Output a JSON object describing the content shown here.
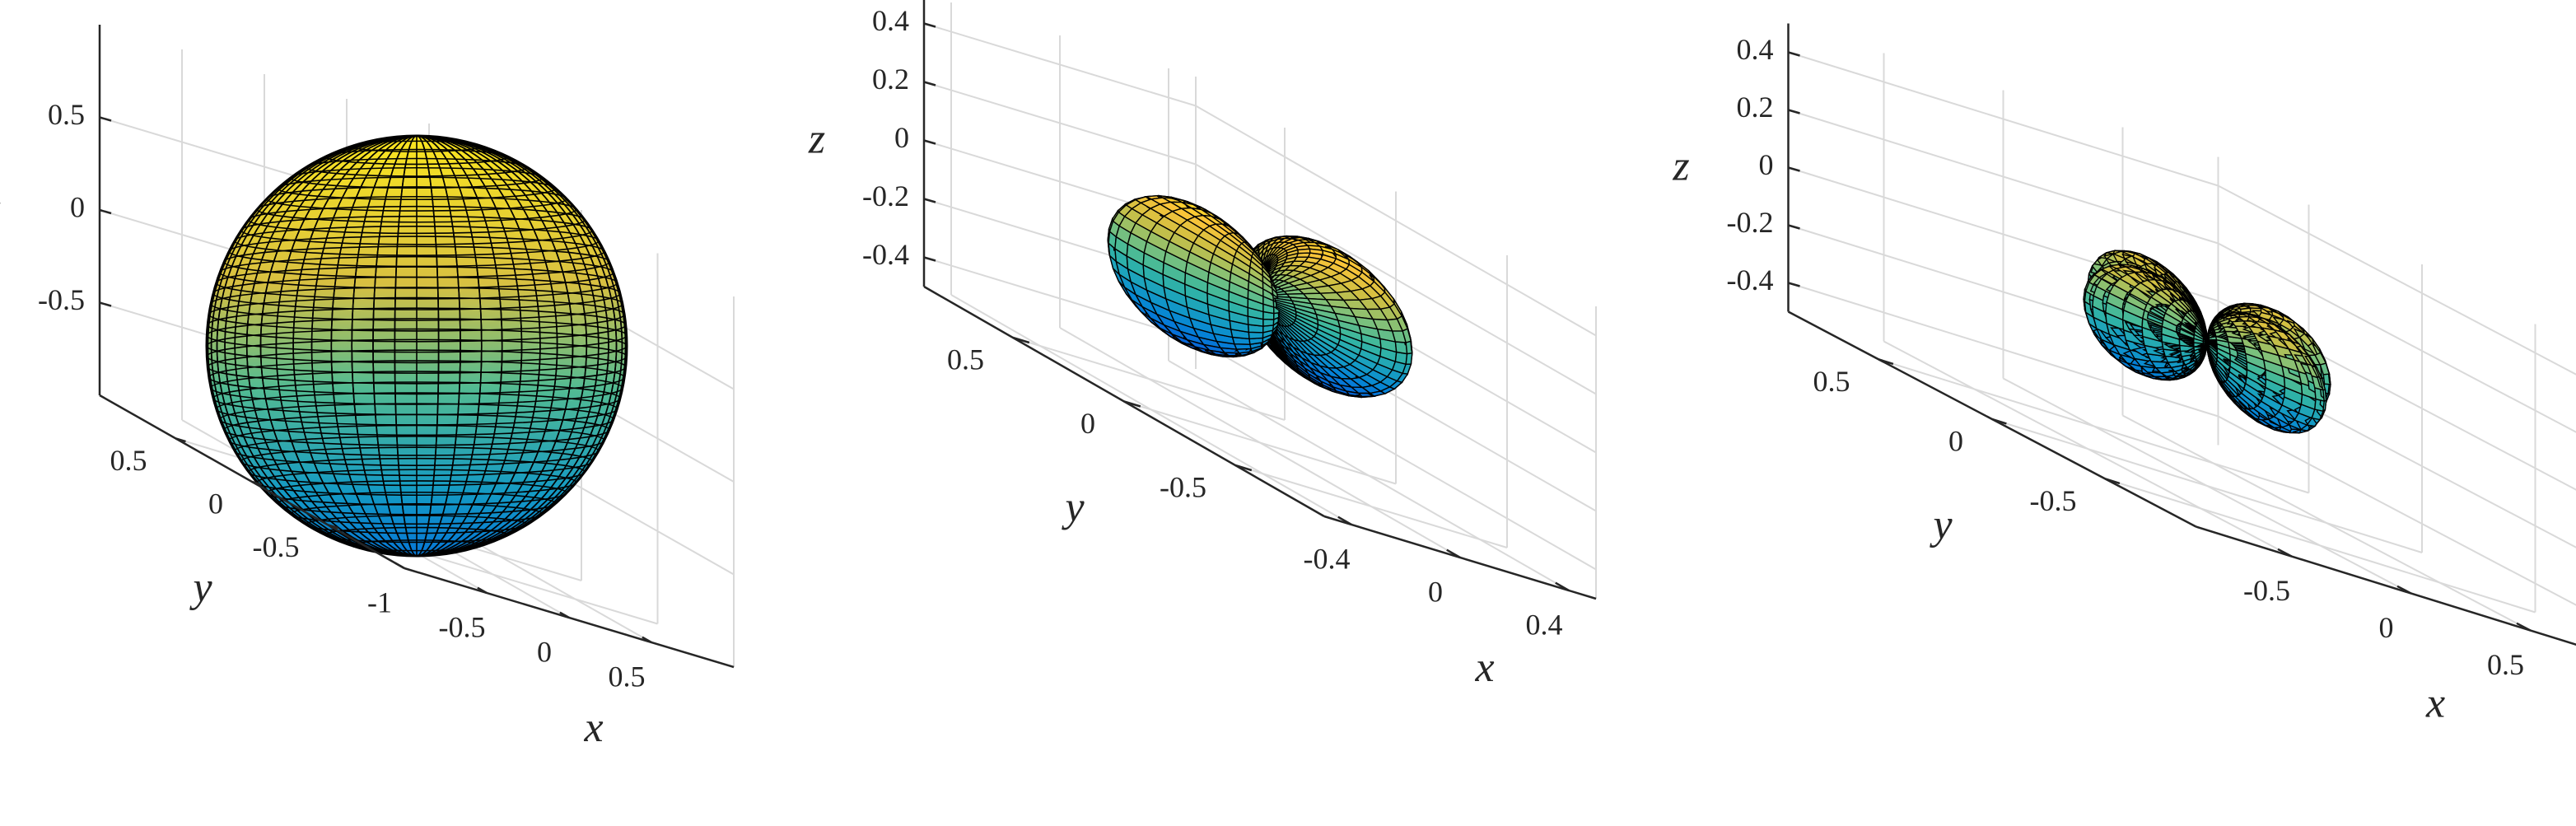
{
  "colors": {
    "axis": "#262626",
    "grid": "#d9d9d9",
    "mesh_edge": "#000000",
    "colormap": "parula"
  },
  "chart_data": [
    {
      "type": "surface",
      "surface": "spherical harmonic |Y_0^0| (sphere)",
      "grid": true,
      "xlabel": "x",
      "ylabel": "y",
      "zlabel": "z",
      "xlim": [
        -1,
        1
      ],
      "ylim": [
        -1,
        1
      ],
      "zlim": [
        -1,
        1
      ],
      "xticks": [
        {
          "v": -1,
          "label": "-1"
        },
        {
          "v": -0.5,
          "label": "-0.5"
        },
        {
          "v": 0,
          "label": "0"
        },
        {
          "v": 0.5,
          "label": "0.5"
        }
      ],
      "yticks": [
        {
          "v": -0.5,
          "label": "-0.5"
        },
        {
          "v": 0,
          "label": "0"
        },
        {
          "v": 0.5,
          "label": "0.5"
        }
      ],
      "zticks": [
        {
          "v": -0.5,
          "label": "-0.5"
        },
        {
          "v": 0,
          "label": "0"
        },
        {
          "v": 0.5,
          "label": "0.5"
        }
      ]
    },
    {
      "type": "surface",
      "surface": "spherical harmonic |Y_1^1| (two lobes)",
      "grid": true,
      "xlabel": "x",
      "ylabel": "y",
      "zlabel": "z",
      "xlim": [
        -0.5,
        0.5
      ],
      "ylim": [
        -0.9,
        0.9
      ],
      "zlim": [
        -0.5,
        0.5
      ],
      "xticks": [
        {
          "v": -0.4,
          "label": "-0.4"
        },
        {
          "v": 0,
          "label": "0"
        },
        {
          "v": 0.4,
          "label": "0.4"
        }
      ],
      "yticks": [
        {
          "v": -0.5,
          "label": "-0.5"
        },
        {
          "v": 0,
          "label": "0"
        },
        {
          "v": 0.5,
          "label": "0.5"
        }
      ],
      "zticks": [
        {
          "v": -0.4,
          "label": "-0.4"
        },
        {
          "v": -0.2,
          "label": "-0.2"
        },
        {
          "v": 0,
          "label": "0"
        },
        {
          "v": 0.2,
          "label": "0.2"
        },
        {
          "v": 0.4,
          "label": "0.4"
        }
      ]
    },
    {
      "type": "surface",
      "surface": "spherical harmonic |Y_2^2| (four lobes)",
      "grid": true,
      "xlabel": "x",
      "ylabel": "y",
      "zlabel": "z",
      "xlim": [
        -0.9,
        0.9
      ],
      "ylim": [
        -0.9,
        0.9
      ],
      "zlim": [
        -0.5,
        0.5
      ],
      "xticks": [
        {
          "v": -0.5,
          "label": "-0.5"
        },
        {
          "v": 0,
          "label": "0"
        },
        {
          "v": 0.5,
          "label": "0.5"
        }
      ],
      "yticks": [
        {
          "v": -0.5,
          "label": "-0.5"
        },
        {
          "v": 0,
          "label": "0"
        },
        {
          "v": 0.5,
          "label": "0.5"
        }
      ],
      "zticks": [
        {
          "v": -0.4,
          "label": "-0.4"
        },
        {
          "v": -0.2,
          "label": "-0.2"
        },
        {
          "v": 0,
          "label": "0"
        },
        {
          "v": 0.2,
          "label": "0.2"
        },
        {
          "v": 0.4,
          "label": "0.4"
        }
      ]
    }
  ]
}
